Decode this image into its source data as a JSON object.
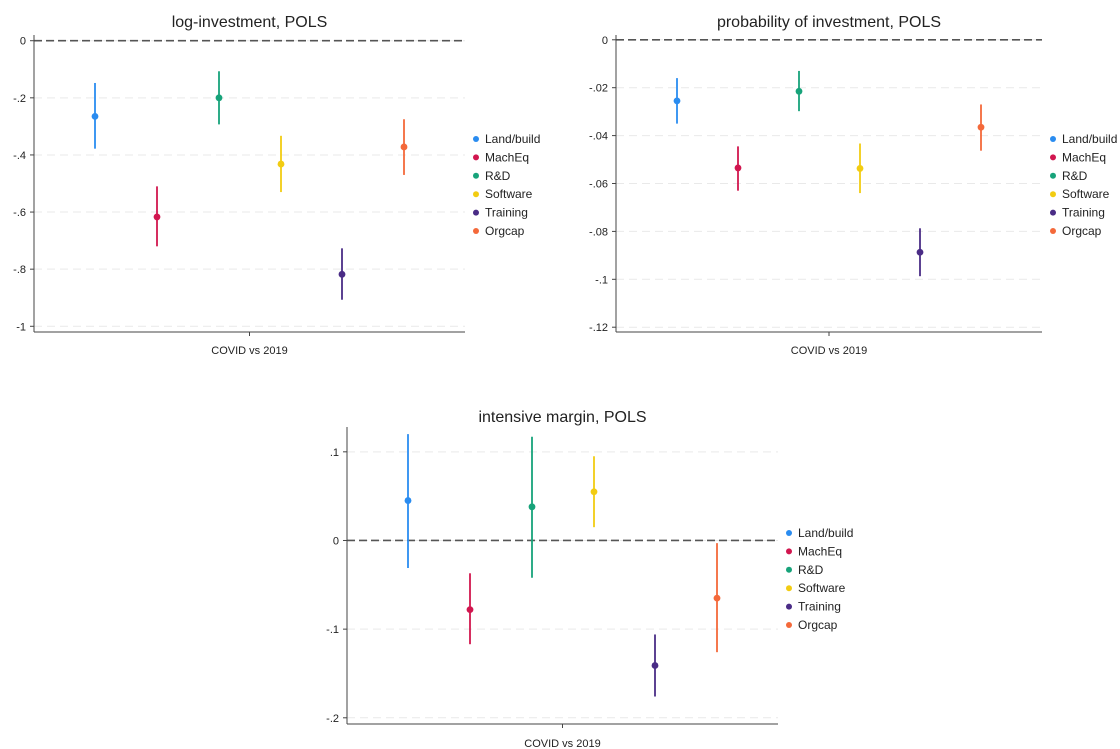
{
  "colors": {
    "Land/build": "#2a8cf0",
    "MachEq": "#d1164f",
    "R&D": "#17a37a",
    "Software": "#f2cc12",
    "Training": "#4a2c86",
    "Orgcap": "#f4693a"
  },
  "chart_data": [
    {
      "type": "scatter",
      "title": "log-investment, POLS",
      "xlabel": "COVID vs 2019",
      "ylim": [
        -1.02,
        0.02
      ],
      "yticks": [
        0,
        -0.2,
        -0.4,
        -0.6,
        -0.8,
        -1
      ],
      "ytick_labels": [
        "0",
        "-.2",
        "-.4",
        "-.6",
        "-.8",
        "-1"
      ],
      "reference_line": 0,
      "legend_position": "right",
      "series": [
        {
          "name": "Land/build",
          "estimate": -0.265,
          "ci": [
            -0.378,
            -0.148
          ]
        },
        {
          "name": "MachEq",
          "estimate": -0.617,
          "ci": [
            -0.72,
            -0.51
          ]
        },
        {
          "name": "R&D",
          "estimate": -0.2,
          "ci": [
            -0.293,
            -0.107
          ]
        },
        {
          "name": "Software",
          "estimate": -0.432,
          "ci": [
            -0.53,
            -0.333
          ]
        },
        {
          "name": "Training",
          "estimate": -0.818,
          "ci": [
            -0.907,
            -0.727
          ]
        },
        {
          "name": "Orgcap",
          "estimate": -0.372,
          "ci": [
            -0.47,
            -0.275
          ]
        }
      ]
    },
    {
      "type": "scatter",
      "title": "probability of investment, POLS",
      "xlabel": "COVID vs 2019",
      "ylim": [
        -0.122,
        0.002
      ],
      "yticks": [
        0,
        -0.02,
        -0.04,
        -0.06,
        -0.08,
        -0.1,
        -0.12
      ],
      "ytick_labels": [
        "0",
        "-.02",
        "-.04",
        "-.06",
        "-.08",
        "-.1",
        "-.12"
      ],
      "reference_line": 0,
      "legend_position": "right",
      "series": [
        {
          "name": "Land/build",
          "estimate": -0.0255,
          "ci": [
            -0.035,
            -0.016
          ]
        },
        {
          "name": "MachEq",
          "estimate": -0.0535,
          "ci": [
            -0.063,
            -0.0445
          ]
        },
        {
          "name": "R&D",
          "estimate": -0.0215,
          "ci": [
            -0.0298,
            -0.013
          ]
        },
        {
          "name": "Software",
          "estimate": -0.0537,
          "ci": [
            -0.064,
            -0.0433
          ]
        },
        {
          "name": "Training",
          "estimate": -0.0887,
          "ci": [
            -0.0987,
            -0.0787
          ]
        },
        {
          "name": "Orgcap",
          "estimate": -0.0365,
          "ci": [
            -0.0463,
            -0.027
          ]
        }
      ]
    },
    {
      "type": "scatter",
      "title": "intensive margin, POLS",
      "xlabel": "COVID vs 2019",
      "ylim": [
        -0.207,
        0.128
      ],
      "yticks": [
        0.1,
        0,
        -0.1,
        -0.2
      ],
      "ytick_labels": [
        ".1",
        "0",
        "-.1",
        "-.2"
      ],
      "reference_line": 0,
      "legend_position": "right",
      "series": [
        {
          "name": "Land/build",
          "estimate": 0.045,
          "ci": [
            -0.031,
            0.12
          ]
        },
        {
          "name": "MachEq",
          "estimate": -0.078,
          "ci": [
            -0.117,
            -0.037
          ]
        },
        {
          "name": "R&D",
          "estimate": 0.038,
          "ci": [
            -0.042,
            0.117
          ]
        },
        {
          "name": "Software",
          "estimate": 0.055,
          "ci": [
            0.015,
            0.095
          ]
        },
        {
          "name": "Training",
          "estimate": -0.141,
          "ci": [
            -0.176,
            -0.106
          ]
        },
        {
          "name": "Orgcap",
          "estimate": -0.065,
          "ci": [
            -0.126,
            -0.003
          ]
        }
      ]
    }
  ]
}
